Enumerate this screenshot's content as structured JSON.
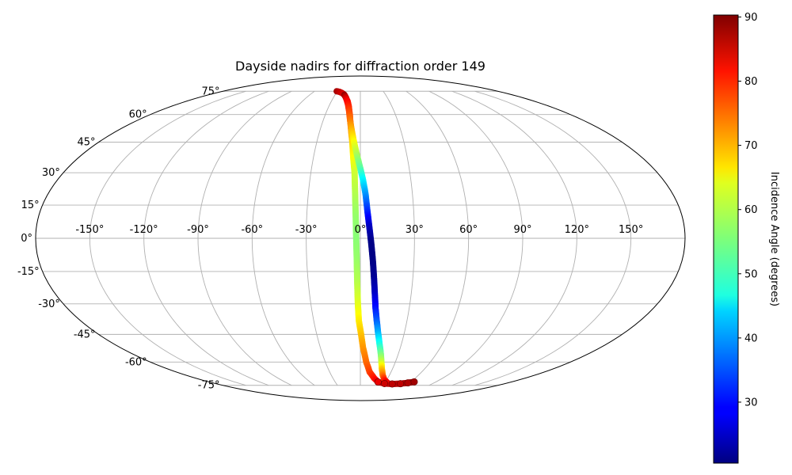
{
  "chart_data": {
    "type": "scatter",
    "projection": "mollweide",
    "title": "Dayside nadirs for diffraction order 149",
    "xlabel": "",
    "ylabel": "",
    "grid": true,
    "longitude_ticks": [
      -150,
      -120,
      -90,
      -60,
      -30,
      0,
      30,
      60,
      90,
      120,
      150
    ],
    "longitude_tick_labels": [
      "-150°",
      "-120°",
      "-90°",
      "-60°",
      "-30°",
      "0°",
      "30°",
      "60°",
      "90°",
      "120°",
      "150°"
    ],
    "latitude_ticks": [
      -75,
      -60,
      -45,
      -30,
      -15,
      0,
      15,
      30,
      45,
      60,
      75
    ],
    "latitude_tick_labels": [
      "-75°",
      "-60°",
      "-45°",
      "-30°",
      "-15°",
      "0°",
      "15°",
      "30°",
      "45°",
      "60°",
      "75°"
    ],
    "colorbar": {
      "label": "Incidence Angle (degrees)",
      "colormap": "jet",
      "range": [
        20.5,
        90.3
      ],
      "ticks": [
        30,
        40,
        50,
        60,
        70,
        80,
        90
      ],
      "tick_labels": [
        "30",
        "40",
        "50",
        "60",
        "70",
        "80",
        "90"
      ]
    },
    "track": [
      {
        "lon": -31,
        "lat": 75,
        "inc": 88
      },
      {
        "lon": -27,
        "lat": 74.6,
        "inc": 86
      },
      {
        "lon": -23,
        "lat": 73.8,
        "inc": 85
      },
      {
        "lon": -19,
        "lat": 72.5,
        "inc": 84
      },
      {
        "lon": -16,
        "lat": 70.5,
        "inc": 82
      },
      {
        "lon": -13,
        "lat": 68,
        "inc": 80
      },
      {
        "lon": -11,
        "lat": 65,
        "inc": 78
      },
      {
        "lon": -9,
        "lat": 60,
        "inc": 76
      },
      {
        "lon": -7,
        "lat": 52,
        "inc": 72
      },
      {
        "lon": -5.5,
        "lat": 45,
        "inc": 67
      },
      {
        "lon": -4.5,
        "lat": 37,
        "inc": 64
      },
      {
        "lon": -3.5,
        "lat": 30,
        "inc": 61
      },
      {
        "lon": -3,
        "lat": 20,
        "inc": 59
      },
      {
        "lon": -2.6,
        "lat": 10,
        "inc": 57
      },
      {
        "lon": -2.3,
        "lat": 0,
        "inc": 56
      },
      {
        "lon": -2,
        "lat": -10,
        "inc": 57
      },
      {
        "lon": -1.8,
        "lat": -20,
        "inc": 59
      },
      {
        "lon": -1.5,
        "lat": -30,
        "inc": 62
      },
      {
        "lon": -1,
        "lat": -38,
        "inc": 65
      },
      {
        "lon": 0.5,
        "lat": -45,
        "inc": 68
      },
      {
        "lon": 2,
        "lat": -52,
        "inc": 71
      },
      {
        "lon": 5,
        "lat": -60,
        "inc": 74
      },
      {
        "lon": 9,
        "lat": -66,
        "inc": 77
      },
      {
        "lon": 15,
        "lat": -70,
        "inc": 80
      },
      {
        "lon": 21,
        "lat": -72.6,
        "inc": 83
      },
      {
        "lon": 30,
        "lat": -73.7,
        "inc": 85
      },
      {
        "lon": 40,
        "lat": -74,
        "inc": 86
      },
      {
        "lon": 50,
        "lat": -73.8,
        "inc": 86
      },
      {
        "lon": 58,
        "lat": -73.2,
        "inc": 87
      },
      {
        "lon": 64,
        "lat": -72.5,
        "inc": 88
      }
    ],
    "track2": [
      {
        "lon": -19,
        "lat": 72.5,
        "inc": 89
      },
      {
        "lon": -16,
        "lat": 70.5,
        "inc": 85
      },
      {
        "lon": -14,
        "lat": 68.5,
        "inc": 82
      },
      {
        "lon": -12,
        "lat": 66,
        "inc": 80
      },
      {
        "lon": -10,
        "lat": 62,
        "inc": 77
      },
      {
        "lon": -8,
        "lat": 56,
        "inc": 73
      },
      {
        "lon": -6,
        "lat": 50,
        "inc": 68
      },
      {
        "lon": -4,
        "lat": 44,
        "inc": 63
      },
      {
        "lon": -2,
        "lat": 38,
        "inc": 58
      },
      {
        "lon": 0,
        "lat": 32,
        "inc": 53
      },
      {
        "lon": 1.5,
        "lat": 27,
        "inc": 47
      },
      {
        "lon": 3,
        "lat": 20,
        "inc": 40
      },
      {
        "lon": 4,
        "lat": 12,
        "inc": 32
      },
      {
        "lon": 5,
        "lat": 5,
        "inc": 25
      },
      {
        "lon": 6,
        "lat": -2,
        "inc": 21
      },
      {
        "lon": 7,
        "lat": -10,
        "inc": 20.8
      },
      {
        "lon": 7.8,
        "lat": -18,
        "inc": 22
      },
      {
        "lon": 8.5,
        "lat": -25,
        "inc": 25
      },
      {
        "lon": 9.3,
        "lat": -32,
        "inc": 30
      },
      {
        "lon": 10.5,
        "lat": -38,
        "inc": 35
      },
      {
        "lon": 12,
        "lat": -44,
        "inc": 41
      },
      {
        "lon": 14,
        "lat": -50,
        "inc": 48
      },
      {
        "lon": 16,
        "lat": -55,
        "inc": 54
      },
      {
        "lon": 18,
        "lat": -60,
        "inc": 60
      },
      {
        "lon": 20,
        "lat": -64,
        "inc": 67
      },
      {
        "lon": 23,
        "lat": -68,
        "inc": 73
      },
      {
        "lon": 27,
        "lat": -71,
        "inc": 79
      },
      {
        "lon": 32,
        "lat": -72.8,
        "inc": 83
      }
    ]
  }
}
